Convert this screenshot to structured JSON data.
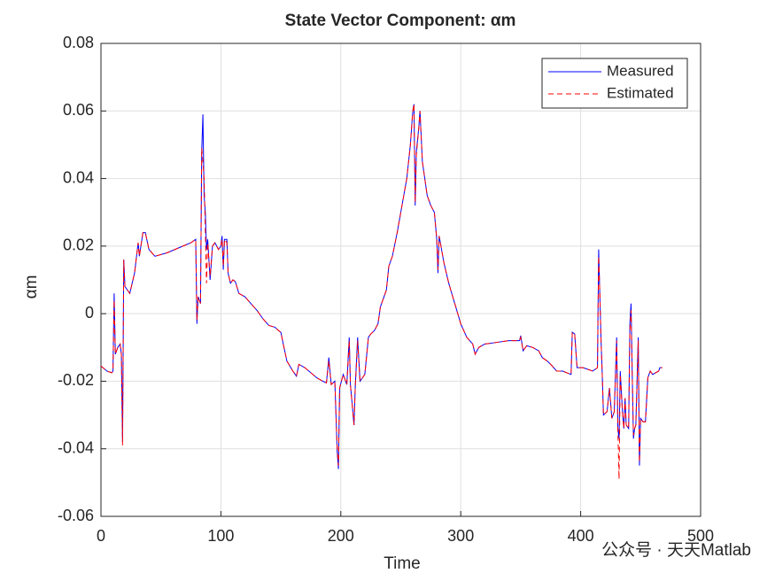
{
  "chart_data": {
    "type": "line",
    "title": "State Vector Component: αm",
    "x_label": "Time",
    "y_label": "αm",
    "xlim": [
      0,
      500
    ],
    "xticks": [
      0,
      100,
      200,
      300,
      400,
      500
    ],
    "ylim": [
      -0.06,
      0.08
    ],
    "yticks": [
      -0.06,
      -0.04,
      -0.02,
      0,
      0.02,
      0.04,
      0.06,
      0.08
    ],
    "grid": true,
    "legend": "top-right",
    "x": [
      0,
      5,
      9,
      10,
      11,
      12,
      14,
      16,
      17,
      18,
      19,
      20,
      24,
      28,
      30,
      31,
      32,
      35,
      37,
      40,
      45,
      55,
      65,
      75,
      79,
      80,
      81,
      83,
      84,
      85,
      86,
      87,
      88,
      89,
      91,
      93,
      95,
      98,
      100,
      101,
      102,
      103,
      105,
      106,
      108,
      110,
      112,
      115,
      120,
      125,
      130,
      135,
      140,
      145,
      148,
      150,
      152,
      155,
      160,
      163,
      165,
      170,
      180,
      185,
      188,
      190,
      192,
      195,
      197,
      198,
      199,
      202,
      205,
      207,
      208,
      211,
      212,
      214,
      216,
      218,
      220,
      223,
      225,
      228,
      231,
      233,
      236,
      238,
      240,
      243,
      247,
      250,
      255,
      258,
      260,
      261,
      262,
      263,
      265,
      266,
      268,
      270,
      272,
      275,
      278,
      280,
      281,
      282,
      284,
      286,
      288,
      290,
      295,
      300,
      305,
      310,
      312,
      315,
      320,
      330,
      340,
      349,
      350,
      352,
      355,
      360,
      365,
      368,
      372,
      375,
      380,
      385,
      392,
      393,
      395,
      397,
      402,
      410,
      414,
      415,
      416,
      417,
      418,
      419,
      422,
      424,
      426,
      428,
      430,
      431,
      432,
      433,
      435,
      436,
      437,
      438,
      440,
      441,
      442,
      443,
      444,
      445,
      446,
      448,
      449,
      450,
      452,
      454,
      456,
      458,
      460,
      465,
      466,
      468
    ],
    "series": [
      {
        "name": "Measured",
        "color": "#0000ff",
        "dash": "solid",
        "values": [
          -0.0155,
          -0.017,
          -0.0175,
          -0.017,
          0.006,
          -0.012,
          -0.01,
          -0.009,
          -0.012,
          -0.038,
          0.016,
          0.008,
          0.006,
          0.012,
          0.018,
          0.021,
          0.017,
          0.024,
          0.024,
          0.019,
          0.017,
          0.018,
          0.0195,
          0.021,
          0.022,
          -0.003,
          0.005,
          0.003,
          0.048,
          0.059,
          0.035,
          0.03,
          0.019,
          0.022,
          0.01,
          0.02,
          0.021,
          0.019,
          0.02,
          0.023,
          0.013,
          0.022,
          0.022,
          0.012,
          0.009,
          0.01,
          0.0095,
          0.006,
          0.005,
          0.003,
          0.001,
          -0.0015,
          -0.0035,
          -0.004,
          -0.005,
          -0.0055,
          -0.009,
          -0.014,
          -0.017,
          -0.0185,
          -0.015,
          -0.016,
          -0.019,
          -0.02,
          -0.0205,
          -0.013,
          -0.021,
          -0.02,
          -0.041,
          -0.046,
          -0.022,
          -0.018,
          -0.021,
          -0.007,
          -0.021,
          -0.033,
          -0.022,
          -0.007,
          -0.02,
          -0.019,
          -0.018,
          -0.007,
          -0.006,
          -0.005,
          -0.003,
          0.002,
          0.005,
          0.007,
          0.014,
          0.017,
          0.024,
          0.03,
          0.04,
          0.05,
          0.06,
          0.062,
          0.032,
          0.048,
          0.055,
          0.06,
          0.045,
          0.04,
          0.035,
          0.032,
          0.03,
          0.022,
          0.012,
          0.023,
          0.019,
          0.015,
          0.012,
          0.009,
          0.003,
          -0.003,
          -0.007,
          -0.009,
          -0.012,
          -0.01,
          -0.009,
          -0.0085,
          -0.008,
          -0.008,
          -0.0065,
          -0.011,
          -0.0095,
          -0.01,
          -0.011,
          -0.013,
          -0.014,
          -0.015,
          -0.017,
          -0.017,
          -0.018,
          -0.0055,
          -0.006,
          -0.016,
          -0.016,
          -0.017,
          -0.016,
          0.019,
          0.005,
          -0.008,
          -0.018,
          -0.03,
          -0.029,
          -0.022,
          -0.031,
          -0.029,
          -0.007,
          -0.034,
          -0.037,
          -0.017,
          -0.03,
          -0.034,
          -0.025,
          -0.033,
          -0.034,
          -0.003,
          0.003,
          -0.018,
          -0.037,
          -0.034,
          -0.033,
          -0.007,
          -0.045,
          -0.031,
          -0.032,
          -0.032,
          -0.019,
          -0.017,
          -0.018,
          -0.017,
          -0.016,
          -0.016
        ]
      },
      {
        "name": "Estimated",
        "color": "#ff0000",
        "dash": "dashed",
        "values": [
          -0.0155,
          -0.017,
          -0.0175,
          -0.017,
          0.004,
          -0.012,
          -0.01,
          -0.009,
          -0.012,
          -0.039,
          0.016,
          0.008,
          0.006,
          0.012,
          0.018,
          0.021,
          0.017,
          0.024,
          0.024,
          0.019,
          0.017,
          0.018,
          0.0195,
          0.021,
          0.022,
          -0.002,
          0.005,
          0.003,
          0.049,
          0.045,
          0.04,
          0.025,
          0.009,
          0.021,
          0.011,
          0.02,
          0.021,
          0.019,
          0.02,
          0.022,
          0.014,
          0.022,
          0.021,
          0.012,
          0.009,
          0.01,
          0.0095,
          0.006,
          0.005,
          0.003,
          0.001,
          -0.0015,
          -0.0035,
          -0.004,
          -0.005,
          -0.0055,
          -0.009,
          -0.014,
          -0.017,
          -0.0185,
          -0.015,
          -0.016,
          -0.019,
          -0.02,
          -0.0205,
          -0.014,
          -0.021,
          -0.02,
          -0.04,
          -0.045,
          -0.022,
          -0.018,
          -0.021,
          -0.008,
          -0.021,
          -0.033,
          -0.022,
          -0.008,
          -0.02,
          -0.019,
          -0.018,
          -0.007,
          -0.006,
          -0.005,
          -0.003,
          0.002,
          0.005,
          0.007,
          0.014,
          0.017,
          0.024,
          0.03,
          0.04,
          0.05,
          0.06,
          0.062,
          0.033,
          0.047,
          0.055,
          0.06,
          0.045,
          0.04,
          0.035,
          0.032,
          0.03,
          0.022,
          0.013,
          0.023,
          0.019,
          0.015,
          0.012,
          0.009,
          0.003,
          -0.003,
          -0.007,
          -0.009,
          -0.012,
          -0.01,
          -0.009,
          -0.0085,
          -0.008,
          -0.008,
          -0.007,
          -0.011,
          -0.0095,
          -0.01,
          -0.011,
          -0.013,
          -0.014,
          -0.015,
          -0.017,
          -0.017,
          -0.018,
          -0.0055,
          -0.006,
          -0.016,
          -0.016,
          -0.017,
          -0.016,
          0.017,
          0.006,
          -0.008,
          -0.018,
          -0.03,
          -0.029,
          -0.022,
          -0.031,
          -0.029,
          -0.008,
          -0.034,
          -0.049,
          -0.018,
          -0.03,
          -0.034,
          -0.025,
          -0.033,
          -0.034,
          -0.005,
          0.001,
          -0.018,
          -0.036,
          -0.034,
          -0.033,
          -0.008,
          -0.044,
          -0.031,
          -0.032,
          -0.032,
          -0.019,
          -0.017,
          -0.018,
          -0.017,
          -0.016,
          -0.016
        ]
      }
    ],
    "watermark": "公众号 · 天天Matlab"
  }
}
